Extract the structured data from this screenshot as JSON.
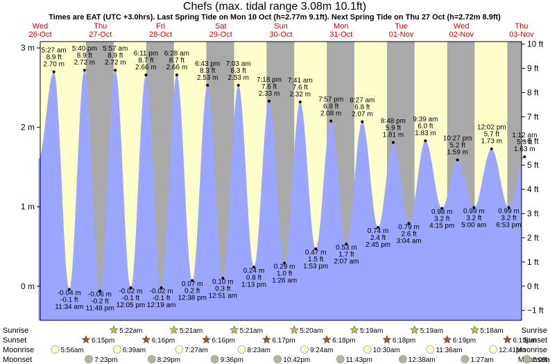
{
  "colors": {
    "day": "#ffffcc",
    "night": "#a9a9a9",
    "tide_fill": "#9aa6ff",
    "date_red": "#cc0000",
    "sun_icon": "#c8c440",
    "sunset_icon": "#9b5a32",
    "moonrise_icon": "#ffffcc",
    "moonset_icon": "#b4b49a"
  },
  "chart_data": {
    "type": "area",
    "title": "Chefs (max. tidal range 3.08m 10.1ft)",
    "subtitle": "Times are EAT (UTC +3.0hrs). Last Spring Tide on Mon 10 Oct (h=2.77m 9.1ft). Next Spring Tide on Thu 27 Oct (h=2.72m 8.9ft)",
    "start": "Wed 26-Oct 00:00",
    "end": "Thu 03-Nov 00:00",
    "ylim_m": [
      -0.43,
      3.08
    ],
    "y_ticks_m": [
      {
        "v": 0,
        "label": "0 m"
      },
      {
        "v": 1,
        "label": "1 m"
      },
      {
        "v": 2,
        "label": "2 m"
      },
      {
        "v": 3,
        "label": "3 m"
      }
    ],
    "y_ticks_ft": [
      {
        "v": -1,
        "label": "−1 ft"
      },
      {
        "v": 0,
        "label": "0 ft"
      },
      {
        "v": 1,
        "label": "1 ft"
      },
      {
        "v": 2,
        "label": "2 ft"
      },
      {
        "v": 3,
        "label": "3 ft"
      },
      {
        "v": 4,
        "label": "4 ft"
      },
      {
        "v": 5,
        "label": "5 ft"
      },
      {
        "v": 6,
        "label": "6 ft"
      },
      {
        "v": 7,
        "label": "7 ft"
      },
      {
        "v": 8,
        "label": "8 ft"
      },
      {
        "v": 9,
        "label": "9 ft"
      },
      {
        "v": 10,
        "label": "10 ft"
      }
    ],
    "days": [
      {
        "dow": "Wed",
        "date": "26-Oct"
      },
      {
        "dow": "Thu",
        "date": "27-Oct"
      },
      {
        "dow": "Fri",
        "date": "28-Oct"
      },
      {
        "dow": "Sat",
        "date": "29-Oct"
      },
      {
        "dow": "Sun",
        "date": "30-Oct"
      },
      {
        "dow": "Mon",
        "date": "31-Oct"
      },
      {
        "dow": "Tue",
        "date": "01-Nov"
      },
      {
        "dow": "Wed",
        "date": "02-Nov"
      },
      {
        "dow": "Thu",
        "date": "03-Nov"
      }
    ],
    "tides": [
      {
        "type": "high",
        "day": 0,
        "time": "5:27 am",
        "m": "2.70 m",
        "ft": "8.9 ft"
      },
      {
        "type": "high",
        "day": 0,
        "time": "5:40 pm",
        "m": "2.72 m",
        "ft": "8.9 ft"
      },
      {
        "type": "high",
        "day": 1,
        "time": "5:57 am",
        "m": "2.72 m",
        "ft": "8.9 ft"
      },
      {
        "type": "high",
        "day": 1,
        "time": "6:11 pm",
        "m": "2.66 m",
        "ft": "8.7 ft"
      },
      {
        "type": "high",
        "day": 2,
        "time": "6:28 am",
        "m": "2.66 m",
        "ft": "8.7 ft"
      },
      {
        "type": "high",
        "day": 2,
        "time": "6:43 pm",
        "m": "2.53 m",
        "ft": "8.3 ft"
      },
      {
        "type": "high",
        "day": 3,
        "time": "7:03 am",
        "m": "2.53 m",
        "ft": "8.3 ft"
      },
      {
        "type": "high",
        "day": 3,
        "time": "7:18 pm",
        "m": "2.33 m",
        "ft": "7.6 ft"
      },
      {
        "type": "high",
        "day": 4,
        "time": "7:41 am",
        "m": "2.32 m",
        "ft": "7.6 ft"
      },
      {
        "type": "high",
        "day": 4,
        "time": "7:57 pm",
        "m": "2.08 m",
        "ft": "6.8 ft"
      },
      {
        "type": "high",
        "day": 5,
        "time": "8:27 am",
        "m": "2.07 m",
        "ft": "6.8 ft"
      },
      {
        "type": "high",
        "day": 5,
        "time": "8:48 pm",
        "m": "1.81 m",
        "ft": "5.9 ft"
      },
      {
        "type": "high",
        "day": 6,
        "time": "9:39 am",
        "m": "1.83 m",
        "ft": "6.0 ft"
      },
      {
        "type": "high",
        "day": 6,
        "time": "10:27 pm",
        "m": "1.59 m",
        "ft": "5.2 ft"
      },
      {
        "type": "high",
        "day": 7,
        "time": "12:02 pm",
        "m": "1.73 m",
        "ft": "5.7 ft"
      },
      {
        "type": "high",
        "day": 8,
        "time": "1:12 am",
        "m": "1.63 m",
        "ft": "5.3 ft"
      },
      {
        "type": "low",
        "day": 0,
        "time": "11:34 am",
        "m": "-0.04 m",
        "ft": "-0.1 ft"
      },
      {
        "type": "low",
        "day": 0,
        "time": "11:48 pm",
        "m": "-0.06 m",
        "ft": "-0.2 ft"
      },
      {
        "type": "low",
        "day": 1,
        "time": "12:05 pm",
        "m": "-0.02 m",
        "ft": "-0.1 ft"
      },
      {
        "type": "low",
        "day": 2,
        "time": "12:19 am",
        "m": "-0.02 m",
        "ft": "-0.1 ft"
      },
      {
        "type": "low",
        "day": 2,
        "time": "12:38 pm",
        "m": "0.07 m",
        "ft": "0.2 ft"
      },
      {
        "type": "low",
        "day": 3,
        "time": "12:51 am",
        "m": "0.10 m",
        "ft": "0.3 ft"
      },
      {
        "type": "low",
        "day": 3,
        "time": "1:13 pm",
        "m": "0.24 m",
        "ft": "0.8 ft"
      },
      {
        "type": "low",
        "day": 4,
        "time": "1:26 am",
        "m": "0.29 m",
        "ft": "1.0 ft"
      },
      {
        "type": "low",
        "day": 4,
        "time": "1:53 pm",
        "m": "0.47 m",
        "ft": "1.5 ft"
      },
      {
        "type": "low",
        "day": 5,
        "time": "2:07 am",
        "m": "0.53 m",
        "ft": "1.7 ft"
      },
      {
        "type": "low",
        "day": 5,
        "time": "2:45 pm",
        "m": "0.74 m",
        "ft": "2.4 ft"
      },
      {
        "type": "low",
        "day": 6,
        "time": "3:04 am",
        "m": "0.79 m",
        "ft": "2.6 ft"
      },
      {
        "type": "low",
        "day": 6,
        "time": "4:15 pm",
        "m": "0.98 m",
        "ft": "3.2 ft"
      },
      {
        "type": "low",
        "day": 7,
        "time": "5:00 am",
        "m": "0.99 m",
        "ft": "3.2 ft"
      },
      {
        "type": "low",
        "day": 7,
        "time": "6:53 pm",
        "m": "0.99 m",
        "ft": "3.2 ft"
      }
    ],
    "last_value_m": 1.63,
    "sunrise": [
      {
        "day": 1,
        "time": "5:22am"
      },
      {
        "day": 2,
        "time": "5:21am"
      },
      {
        "day": 3,
        "time": "5:21am"
      },
      {
        "day": 4,
        "time": "5:20am"
      },
      {
        "day": 5,
        "time": "5:19am"
      },
      {
        "day": 6,
        "time": "5:19am"
      },
      {
        "day": 7,
        "time": "5:18am"
      }
    ],
    "sunset": [
      {
        "day": 0,
        "time": "6:15pm"
      },
      {
        "day": 1,
        "time": "6:16pm"
      },
      {
        "day": 2,
        "time": "6:16pm"
      },
      {
        "day": 3,
        "time": "6:17pm"
      },
      {
        "day": 4,
        "time": "6:18pm"
      },
      {
        "day": 5,
        "time": "6:18pm"
      },
      {
        "day": 6,
        "time": "6:19pm"
      },
      {
        "day": 7,
        "time": "6:19pm"
      }
    ],
    "moonrise": [
      {
        "day": 0,
        "time": "5:56am"
      },
      {
        "day": 1,
        "time": "6:39am"
      },
      {
        "day": 2,
        "time": "7:27am"
      },
      {
        "day": 3,
        "time": "8:23am"
      },
      {
        "day": 4,
        "time": "9:24am"
      },
      {
        "day": 5,
        "time": "10:30am"
      },
      {
        "day": 6,
        "time": "11:36am"
      },
      {
        "day": 7,
        "time": "12:41pm"
      }
    ],
    "moonset": [
      {
        "day": 0,
        "time": "7:23pm"
      },
      {
        "day": 1,
        "time": "8:29pm"
      },
      {
        "day": 2,
        "time": "9:36pm"
      },
      {
        "day": 3,
        "time": "10:42pm"
      },
      {
        "day": 4,
        "time": "11:43pm"
      },
      {
        "day": 6,
        "time": "12:38am"
      },
      {
        "day": 7,
        "time": "1:27am"
      },
      {
        "day": 8,
        "time": "2:09am"
      }
    ],
    "row_labels": {
      "sunrise": "Sunrise",
      "sunset": "Sunset",
      "moonrise": "Moonrise",
      "moonset": "Moonset"
    }
  }
}
